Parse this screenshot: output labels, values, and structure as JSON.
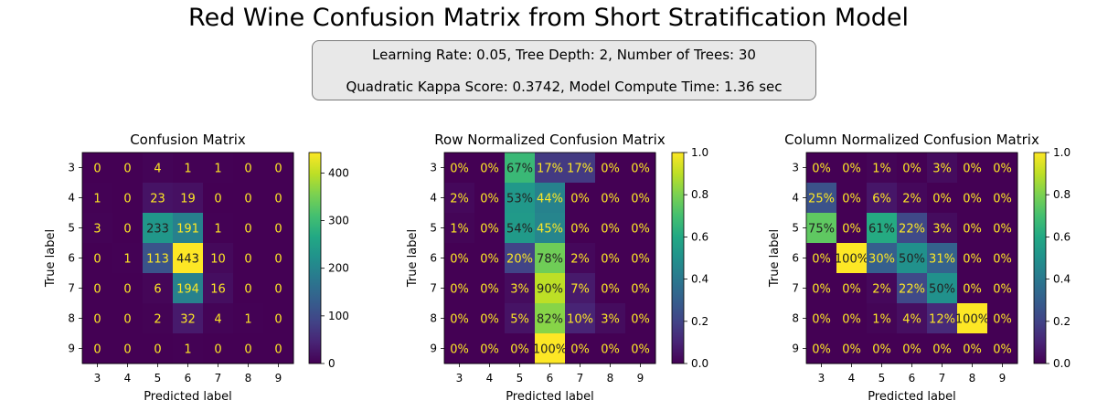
{
  "suptitle": "Red Wine Confusion Matrix from Short Stratification Model",
  "info": {
    "line1": "Learning Rate: 0.05, Tree Depth: 2, Number of Trees: 30",
    "line2": "Quadratic Kappa Score: 0.3742,  Model Compute Time: 1.36 sec"
  },
  "chart_data": [
    {
      "type": "heatmap",
      "title": "Confusion Matrix",
      "xlabel": "Predicted label",
      "ylabel": "True label",
      "x_categories": [
        "3",
        "4",
        "5",
        "6",
        "7",
        "8",
        "9"
      ],
      "y_categories": [
        "3",
        "4",
        "5",
        "6",
        "7",
        "8",
        "9"
      ],
      "values": [
        [
          0,
          0,
          4,
          1,
          1,
          0,
          0
        ],
        [
          1,
          0,
          23,
          19,
          0,
          0,
          0
        ],
        [
          3,
          0,
          233,
          191,
          1,
          0,
          0
        ],
        [
          0,
          1,
          113,
          443,
          10,
          0,
          0
        ],
        [
          0,
          0,
          6,
          194,
          16,
          0,
          0
        ],
        [
          0,
          0,
          2,
          32,
          4,
          1,
          0
        ],
        [
          0,
          0,
          0,
          1,
          0,
          0,
          0
        ]
      ],
      "cell_labels": [
        [
          "0",
          "0",
          "4",
          "1",
          "1",
          "0",
          "0"
        ],
        [
          "1",
          "0",
          "23",
          "19",
          "0",
          "0",
          "0"
        ],
        [
          "3",
          "0",
          "233",
          "191",
          "1",
          "0",
          "0"
        ],
        [
          "0",
          "1",
          "113",
          "443",
          "10",
          "0",
          "0"
        ],
        [
          "0",
          "0",
          "6",
          "194",
          "16",
          "0",
          "0"
        ],
        [
          "0",
          "0",
          "2",
          "32",
          "4",
          "1",
          "0"
        ],
        [
          "0",
          "0",
          "0",
          "1",
          "0",
          "0",
          "0"
        ]
      ],
      "color_range": [
        0,
        443
      ],
      "colorbar_ticks": [
        "0",
        "100",
        "200",
        "300",
        "400"
      ],
      "colorbar_tick_values": [
        0,
        100,
        200,
        300,
        400
      ],
      "colormap": "viridis"
    },
    {
      "type": "heatmap",
      "title": "Row Normalized Confusion Matrix",
      "xlabel": "Predicted label",
      "ylabel": "True label",
      "x_categories": [
        "3",
        "4",
        "5",
        "6",
        "7",
        "8",
        "9"
      ],
      "y_categories": [
        "3",
        "4",
        "5",
        "6",
        "7",
        "8",
        "9"
      ],
      "values": [
        [
          0,
          0,
          0.67,
          0.17,
          0.17,
          0,
          0
        ],
        [
          0.02,
          0,
          0.53,
          0.44,
          0,
          0,
          0
        ],
        [
          0.01,
          0,
          0.54,
          0.45,
          0,
          0,
          0
        ],
        [
          0,
          0,
          0.2,
          0.78,
          0.02,
          0,
          0
        ],
        [
          0,
          0,
          0.03,
          0.9,
          0.07,
          0,
          0
        ],
        [
          0,
          0,
          0.05,
          0.82,
          0.1,
          0.03,
          0
        ],
        [
          0,
          0,
          0,
          1.0,
          0,
          0,
          0
        ]
      ],
      "cell_labels": [
        [
          "0%",
          "0%",
          "67%",
          "17%",
          "17%",
          "0%",
          "0%"
        ],
        [
          "2%",
          "0%",
          "53%",
          "44%",
          "0%",
          "0%",
          "0%"
        ],
        [
          "1%",
          "0%",
          "54%",
          "45%",
          "0%",
          "0%",
          "0%"
        ],
        [
          "0%",
          "0%",
          "20%",
          "78%",
          "2%",
          "0%",
          "0%"
        ],
        [
          "0%",
          "0%",
          "3%",
          "90%",
          "7%",
          "0%",
          "0%"
        ],
        [
          "0%",
          "0%",
          "5%",
          "82%",
          "10%",
          "3%",
          "0%"
        ],
        [
          "0%",
          "0%",
          "0%",
          "100%",
          "0%",
          "0%",
          "0%"
        ]
      ],
      "color_range": [
        0,
        1
      ],
      "colorbar_ticks": [
        "0.0",
        "0.2",
        "0.4",
        "0.6",
        "0.8",
        "1.0"
      ],
      "colorbar_tick_values": [
        0,
        0.2,
        0.4,
        0.6,
        0.8,
        1.0
      ],
      "colormap": "viridis"
    },
    {
      "type": "heatmap",
      "title": "Column Normalized Confusion Matrix",
      "xlabel": "Predicted label",
      "ylabel": "True label",
      "x_categories": [
        "3",
        "4",
        "5",
        "6",
        "7",
        "8",
        "9"
      ],
      "y_categories": [
        "3",
        "4",
        "5",
        "6",
        "7",
        "8",
        "9"
      ],
      "values": [
        [
          0,
          0,
          0.01,
          0,
          0.03,
          0,
          0
        ],
        [
          0.25,
          0,
          0.06,
          0.02,
          0,
          0,
          0
        ],
        [
          0.75,
          0,
          0.61,
          0.22,
          0.03,
          0,
          0
        ],
        [
          0,
          1.0,
          0.3,
          0.5,
          0.31,
          0,
          0
        ],
        [
          0,
          0,
          0.02,
          0.22,
          0.5,
          0,
          0
        ],
        [
          0,
          0,
          0.01,
          0.04,
          0.12,
          1.0,
          0
        ],
        [
          0,
          0,
          0,
          0,
          0,
          0,
          0
        ]
      ],
      "cell_labels": [
        [
          "0%",
          "0%",
          "1%",
          "0%",
          "3%",
          "0%",
          "0%"
        ],
        [
          "25%",
          "0%",
          "6%",
          "2%",
          "0%",
          "0%",
          "0%"
        ],
        [
          "75%",
          "0%",
          "61%",
          "22%",
          "3%",
          "0%",
          "0%"
        ],
        [
          "0%",
          "100%",
          "30%",
          "50%",
          "31%",
          "0%",
          "0%"
        ],
        [
          "0%",
          "0%",
          "2%",
          "22%",
          "50%",
          "0%",
          "0%"
        ],
        [
          "0%",
          "0%",
          "1%",
          "4%",
          "12%",
          "100%",
          "0%"
        ],
        [
          "0%",
          "0%",
          "0%",
          "0%",
          "0%",
          "0%",
          "0%"
        ]
      ],
      "color_range": [
        0,
        1
      ],
      "colorbar_ticks": [
        "0.0",
        "0.2",
        "0.4",
        "0.6",
        "0.8",
        "1.0"
      ],
      "colorbar_tick_values": [
        0,
        0.2,
        0.4,
        0.6,
        0.8,
        1.0
      ],
      "colormap": "viridis"
    }
  ]
}
